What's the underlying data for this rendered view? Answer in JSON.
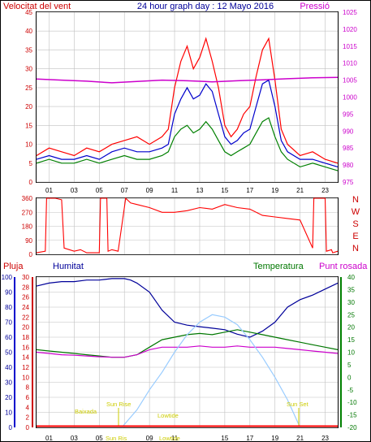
{
  "title": "24 hour graph day : 12 Mayo 2016",
  "colors": {
    "wind": "#ff0000",
    "gust_avg": "#0000cc",
    "wind_green": "#008000",
    "pressure": "#cc00cc",
    "humidity": "#000099",
    "temperature": "#007700",
    "dewpoint": "#cc00cc",
    "rain": "#ff0000",
    "sun": "#99ccff",
    "tide": "#cccc00",
    "grid": "#c0c0c0",
    "frame": "#000000"
  },
  "chart_data": [
    {
      "type": "line",
      "panel": "wind",
      "title": "",
      "left_axis_label": "Velocitat del vent",
      "right_axis_label": "Pressió",
      "x_ticks": [
        "01",
        "03",
        "05",
        "07",
        "09",
        "11",
        "13",
        "15",
        "17",
        "19",
        "21",
        "23"
      ],
      "y_left_range": [
        0,
        45
      ],
      "y_left_ticks": [
        0,
        5,
        10,
        15,
        20,
        25,
        30,
        35,
        40,
        45
      ],
      "y_right_range": [
        975,
        1025
      ],
      "y_right_ticks": [
        975,
        980,
        985,
        990,
        995,
        1000,
        1005,
        1010,
        1015,
        1020,
        1025
      ],
      "grid": true,
      "series": [
        {
          "name": "Velocitat del vent",
          "color": "#ff0000",
          "axis": "left",
          "x": [
            0,
            1,
            2,
            3,
            4,
            5,
            6,
            7,
            8,
            9,
            10,
            10.5,
            11,
            11.5,
            12,
            12.5,
            13,
            13.5,
            14,
            14.5,
            15,
            15.5,
            16,
            16.5,
            17,
            17.5,
            18,
            18.5,
            19,
            19.5,
            20,
            21,
            22,
            23,
            24
          ],
          "values": [
            7,
            9,
            8,
            7,
            9,
            8,
            10,
            11,
            12,
            10,
            12,
            14,
            25,
            32,
            36,
            30,
            33,
            38,
            32,
            25,
            15,
            12,
            14,
            18,
            20,
            28,
            35,
            38,
            27,
            14,
            10,
            7,
            8,
            6,
            5
          ]
        },
        {
          "name": "",
          "color": "#0000cc",
          "axis": "left",
          "x": [
            0,
            1,
            2,
            3,
            4,
            5,
            6,
            7,
            8,
            9,
            10,
            10.5,
            11,
            11.5,
            12,
            12.5,
            13,
            13.5,
            14,
            14.5,
            15,
            15.5,
            16,
            16.5,
            17,
            17.5,
            18,
            18.5,
            19,
            19.5,
            20,
            21,
            22,
            23,
            24
          ],
          "values": [
            6,
            7,
            6,
            6,
            7,
            6,
            8,
            9,
            8,
            8,
            9,
            10,
            18,
            22,
            25,
            22,
            23,
            26,
            24,
            18,
            12,
            10,
            11,
            13,
            14,
            20,
            26,
            27,
            20,
            11,
            8,
            6,
            6,
            5,
            4
          ]
        },
        {
          "name": "",
          "color": "#008000",
          "axis": "left",
          "x": [
            0,
            1,
            2,
            3,
            4,
            5,
            6,
            7,
            8,
            9,
            10,
            10.5,
            11,
            11.5,
            12,
            12.5,
            13,
            13.5,
            14,
            14.5,
            15,
            15.5,
            16,
            16.5,
            17,
            17.5,
            18,
            18.5,
            19,
            19.5,
            20,
            21,
            22,
            23,
            24
          ],
          "values": [
            5,
            6,
            5,
            5,
            6,
            5,
            6,
            7,
            6,
            6,
            7,
            8,
            12,
            14,
            15,
            13,
            14,
            16,
            14,
            11,
            8,
            7,
            8,
            9,
            10,
            13,
            16,
            17,
            12,
            8,
            6,
            4,
            5,
            4,
            3
          ]
        },
        {
          "name": "Pressió",
          "color": "#cc00cc",
          "axis": "right",
          "x": [
            0,
            2,
            4,
            6,
            8,
            10,
            12,
            14,
            16,
            18,
            20,
            22,
            24
          ],
          "values": [
            1005.3,
            1005.0,
            1004.7,
            1004.2,
            1004.6,
            1005.0,
            1004.8,
            1004.5,
            1004.8,
            1005.1,
            1005.4,
            1005.7,
            1005.8
          ]
        }
      ]
    },
    {
      "type": "line",
      "panel": "direction",
      "x_ticks": [
        "01",
        "03",
        "05",
        "07",
        "09",
        "11",
        "13",
        "15",
        "17",
        "19",
        "21",
        "23"
      ],
      "y_left_range": [
        0,
        360
      ],
      "y_left_ticks": [
        0,
        90,
        180,
        270,
        360
      ],
      "y_right_labels": [
        "N",
        "W",
        "S",
        "E",
        "N"
      ],
      "grid": true,
      "series": [
        {
          "name": "",
          "color": "#ff0000",
          "x": [
            0,
            0.7,
            0.8,
            1.5,
            2.0,
            2.2,
            3.0,
            3.5,
            4.0,
            5.0,
            5.1,
            5.6,
            5.7,
            6.0,
            6.5,
            7.0,
            7.1,
            7.5,
            8,
            9,
            10,
            11,
            12,
            13,
            14,
            15,
            16,
            17,
            18,
            19,
            20,
            21,
            22,
            22.1,
            23,
            23.1,
            23.5,
            23.6,
            24
          ],
          "values": [
            10,
            20,
            360,
            360,
            350,
            40,
            20,
            30,
            10,
            10,
            360,
            360,
            20,
            30,
            20,
            300,
            360,
            330,
            320,
            300,
            270,
            270,
            280,
            300,
            290,
            320,
            300,
            290,
            250,
            240,
            230,
            220,
            40,
            360,
            360,
            20,
            30,
            10,
            20
          ]
        }
      ]
    },
    {
      "type": "line",
      "panel": "humidity_temperature",
      "labels": {
        "rain": "Pluja",
        "humidity": "Humitat",
        "temperature": "Temperatura",
        "dewpoint": "Punt rosada"
      },
      "x_ticks": [
        "01",
        "03",
        "05",
        "07",
        "09",
        "11",
        "13",
        "15",
        "17",
        "19",
        "21",
        "23"
      ],
      "y_rain_ticks": [
        0,
        2,
        4,
        6,
        8,
        10,
        12,
        14,
        16,
        18,
        20,
        22,
        24,
        26,
        28,
        30
      ],
      "y_humidity_range": [
        0,
        100
      ],
      "y_humidity_ticks": [
        0,
        10,
        20,
        30,
        40,
        50,
        60,
        70,
        80,
        90,
        100
      ],
      "y_temp_range": [
        -20,
        40
      ],
      "y_temp_ticks": [
        -20,
        -15,
        -10,
        -5,
        0,
        5,
        10,
        15,
        20,
        25,
        30,
        35,
        40
      ],
      "annotations": [
        "Baixada",
        "Sun Rise",
        "Sun Ris",
        "Lowtide",
        "Lowtide",
        "Sun Set"
      ],
      "grid": true,
      "series": [
        {
          "name": "Humitat",
          "color": "#000099",
          "axis": "humidity",
          "x": [
            0,
            1,
            2,
            3,
            4,
            5,
            6,
            7,
            7.5,
            8,
            9,
            10,
            11,
            12,
            13,
            14,
            15,
            16,
            17,
            18,
            19,
            20,
            21,
            22,
            23,
            24
          ],
          "values": [
            94,
            96,
            97,
            97,
            98,
            98,
            99,
            99,
            98,
            96,
            90,
            78,
            70,
            68,
            67,
            66,
            65,
            62,
            60,
            64,
            70,
            80,
            85,
            88,
            92,
            96
          ]
        },
        {
          "name": "Temperatura",
          "color": "#007700",
          "axis": "temp",
          "x": [
            0,
            1,
            2,
            3,
            4,
            5,
            6,
            7,
            8,
            9,
            10,
            11,
            12,
            13,
            14,
            15,
            16,
            17,
            18,
            19,
            20,
            21,
            22,
            23,
            24
          ],
          "values": [
            11,
            10.5,
            10,
            9.5,
            9,
            8.5,
            8,
            8,
            9,
            12,
            15,
            16,
            17,
            17.5,
            17,
            18,
            19,
            18,
            17,
            16,
            15,
            14,
            13,
            12,
            11
          ]
        },
        {
          "name": "Punt rosada",
          "color": "#cc00cc",
          "axis": "temp",
          "x": [
            0,
            1,
            2,
            3,
            4,
            5,
            6,
            7,
            8,
            9,
            10,
            11,
            12,
            13,
            14,
            15,
            16,
            17,
            18,
            19,
            20,
            21,
            22,
            23,
            24
          ],
          "values": [
            10,
            9.5,
            9,
            8.8,
            8.5,
            8.2,
            8,
            8,
            9,
            11,
            12,
            12,
            12,
            12.5,
            12,
            12,
            12.5,
            12,
            12,
            12,
            11.5,
            11,
            10.5,
            10,
            9.5
          ]
        },
        {
          "name": "",
          "color": "#99ccff",
          "axis": "temp",
          "x": [
            6.8,
            8,
            9,
            10,
            11,
            12,
            13,
            14,
            15,
            16,
            17,
            18,
            19,
            20,
            21
          ],
          "values": [
            -20,
            -13,
            -5,
            2,
            10,
            17,
            22,
            25,
            24,
            21,
            15,
            8,
            0,
            -9,
            -20
          ]
        }
      ]
    }
  ]
}
